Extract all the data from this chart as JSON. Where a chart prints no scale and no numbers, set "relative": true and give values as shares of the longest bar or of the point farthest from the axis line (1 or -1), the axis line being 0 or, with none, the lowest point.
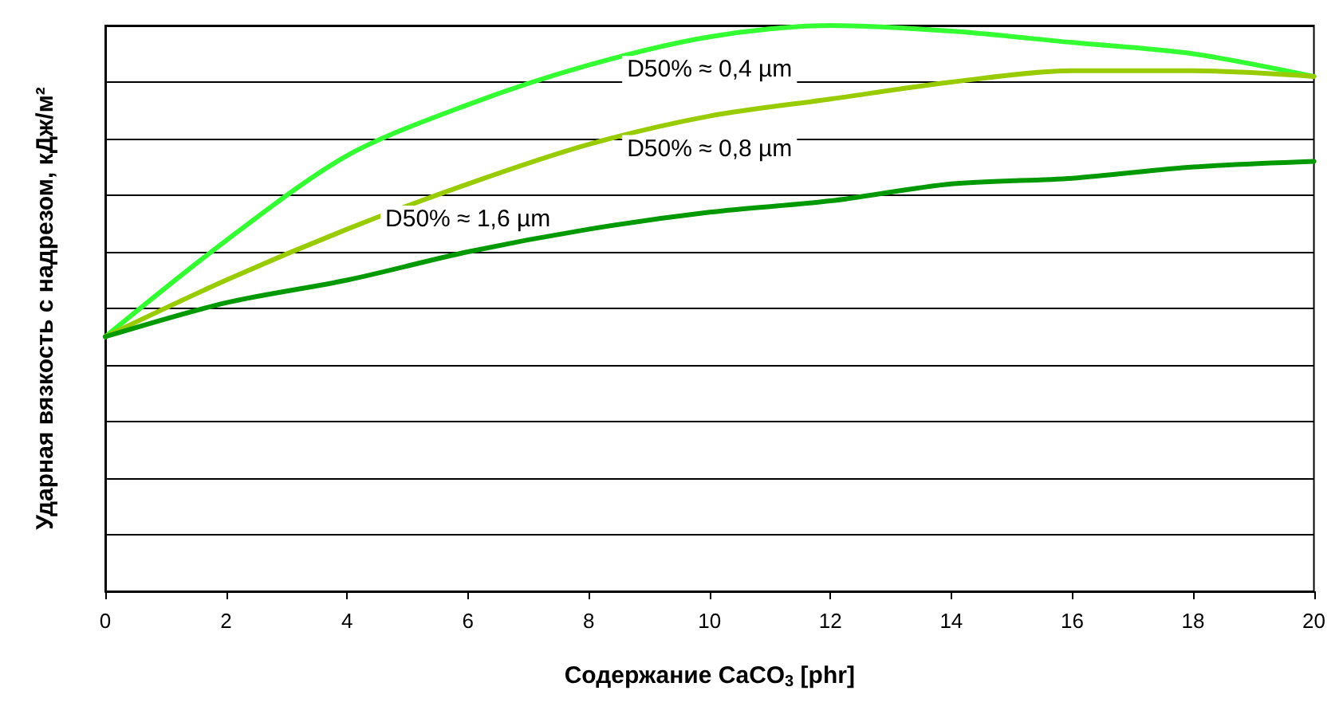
{
  "chart_data": {
    "type": "line",
    "relative": true,
    "xlabel": "Содержание CaCO$_{3}$ [phr]",
    "ylabel": "Ударная вязкость с надрезом, кДж/м²",
    "x": [
      0,
      2,
      4,
      6,
      8,
      10,
      12,
      14,
      16,
      18,
      20
    ],
    "xlim": [
      0,
      20
    ],
    "xticks": [
      0,
      2,
      4,
      6,
      8,
      10,
      12,
      14,
      16,
      18,
      20
    ],
    "series": [
      {
        "name": "D50% ≈ 0,4 µm",
        "color": "#33ff33",
        "values": [
          0.45,
          0.62,
          0.77,
          0.86,
          0.93,
          0.98,
          1,
          0.99,
          0.97,
          0.95,
          0.91
        ]
      },
      {
        "name": "D50% ≈ 0,8 µm",
        "color": "#99cc00",
        "values": [
          0.45,
          0.55,
          0.64,
          0.72,
          0.79,
          0.84,
          0.87,
          0.9,
          0.92,
          0.92,
          0.91
        ]
      },
      {
        "name": "D50% ≈ 1,6 µm",
        "color": "#009900",
        "values": [
          0.45,
          0.51,
          0.55,
          0.6,
          0.64,
          0.67,
          0.69,
          0.72,
          0.73,
          0.75,
          0.76
        ]
      }
    ],
    "grid": "y",
    "marker": "none",
    "line_style": "solid"
  }
}
